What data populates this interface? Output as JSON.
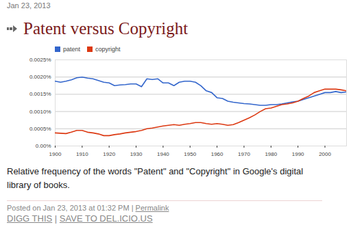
{
  "post": {
    "date": "Jan 23, 2013",
    "caption": "Relative frequency of the words \"Patent\" and \"Copyright\" in Google's digital library of books.",
    "posted": "Posted on Jan 23, 2013 at 01:32 PM",
    "separator": "|",
    "permalink": "Permalink",
    "links": [
      "DIGG THIS",
      "SAVE TO DEL.ICIO.US"
    ]
  },
  "chart_data": {
    "type": "line",
    "title": "Patent versus Copyright",
    "x": [
      1900,
      1902,
      1904,
      1906,
      1908,
      1910,
      1912,
      1914,
      1916,
      1918,
      1920,
      1922,
      1924,
      1926,
      1928,
      1930,
      1932,
      1934,
      1936,
      1938,
      1940,
      1942,
      1944,
      1946,
      1948,
      1950,
      1952,
      1954,
      1956,
      1958,
      1960,
      1962,
      1964,
      1966,
      1968,
      1970,
      1972,
      1974,
      1976,
      1978,
      1980,
      1982,
      1984,
      1986,
      1988,
      1990,
      1992,
      1994,
      1996,
      1998,
      2000,
      2002,
      2004,
      2006,
      2008
    ],
    "series": [
      {
        "name": "patent",
        "color": "#3366cc",
        "values": [
          0.00188,
          0.00185,
          0.00188,
          0.00192,
          0.00198,
          0.002,
          0.00197,
          0.00195,
          0.0019,
          0.00185,
          0.00183,
          0.00175,
          0.00177,
          0.00178,
          0.0018,
          0.0018,
          0.00172,
          0.00195,
          0.00193,
          0.00195,
          0.00183,
          0.00183,
          0.00175,
          0.00185,
          0.00188,
          0.00188,
          0.00185,
          0.00175,
          0.0016,
          0.00155,
          0.0014,
          0.00138,
          0.0013,
          0.00127,
          0.00125,
          0.00123,
          0.00122,
          0.0012,
          0.00118,
          0.00118,
          0.0012,
          0.0012,
          0.00122,
          0.00125,
          0.00128,
          0.0013,
          0.00135,
          0.0014,
          0.00145,
          0.0015,
          0.00155,
          0.00155,
          0.00158,
          0.00155,
          0.00157
        ]
      },
      {
        "name": "copyright",
        "color": "#dc3912",
        "values": [
          0.00038,
          0.00037,
          0.00036,
          0.0004,
          0.00045,
          0.00045,
          0.0004,
          0.00038,
          0.00035,
          0.0003,
          0.0003,
          0.00033,
          0.00035,
          0.00038,
          0.0004,
          0.00042,
          0.00045,
          0.0005,
          0.00052,
          0.00055,
          0.00058,
          0.0006,
          0.00062,
          0.0006,
          0.00063,
          0.00065,
          0.00068,
          0.00068,
          0.00065,
          0.00063,
          0.00065,
          0.00063,
          0.0006,
          0.00062,
          0.00068,
          0.00075,
          0.00082,
          0.0009,
          0.001,
          0.00108,
          0.0011,
          0.00115,
          0.0012,
          0.00122,
          0.00125,
          0.0013,
          0.00138,
          0.00145,
          0.00155,
          0.0016,
          0.00165,
          0.00165,
          0.00165,
          0.00163,
          0.0016
        ]
      }
    ],
    "xlim": [
      1900,
      2008
    ],
    "xticks": [
      1900,
      1910,
      1920,
      1930,
      1940,
      1950,
      1960,
      1970,
      1980,
      1990,
      2000
    ],
    "ylim": [
      0,
      0.0025
    ],
    "yticks": [
      {
        "value": 0,
        "label": "0.00%"
      },
      {
        "value": 0.0005,
        "label": "0.0005%"
      },
      {
        "value": 0.001,
        "label": "0.0010%"
      },
      {
        "value": 0.0015,
        "label": "0.0015%"
      },
      {
        "value": 0.002,
        "label": "0.0020%"
      },
      {
        "value": 0.0025,
        "label": "0.0025%"
      }
    ],
    "grid": true,
    "legend": "top-left"
  }
}
